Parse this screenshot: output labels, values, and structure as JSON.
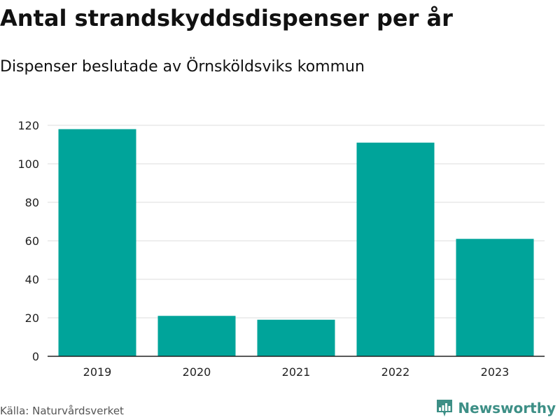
{
  "title": "Antal strandskyddsdispenser per år",
  "subtitle": "Dispenser beslutade av Örnsköldsviks kommun",
  "source": "Källa: Naturvårdsverket",
  "brand": {
    "name": "Newsworthy",
    "icon": "bar-chart-icon",
    "color": "#3d8f86"
  },
  "colors": {
    "bar": "#00a49a",
    "grid": "#dddddd",
    "axis": "#222222",
    "tick_text": "#222222"
  },
  "chart_data": {
    "type": "bar",
    "categories": [
      "2019",
      "2020",
      "2021",
      "2022",
      "2023"
    ],
    "values": [
      118,
      21,
      19,
      111,
      61
    ],
    "title": "Antal strandskyddsdispenser per år",
    "subtitle": "Dispenser beslutade av Örnsköldsviks kommun",
    "xlabel": "",
    "ylabel": "",
    "ylim": [
      0,
      120
    ],
    "yticks": [
      "0",
      "20",
      "40",
      "60",
      "80",
      "100",
      "120"
    ],
    "grid": true,
    "legend": "none"
  }
}
